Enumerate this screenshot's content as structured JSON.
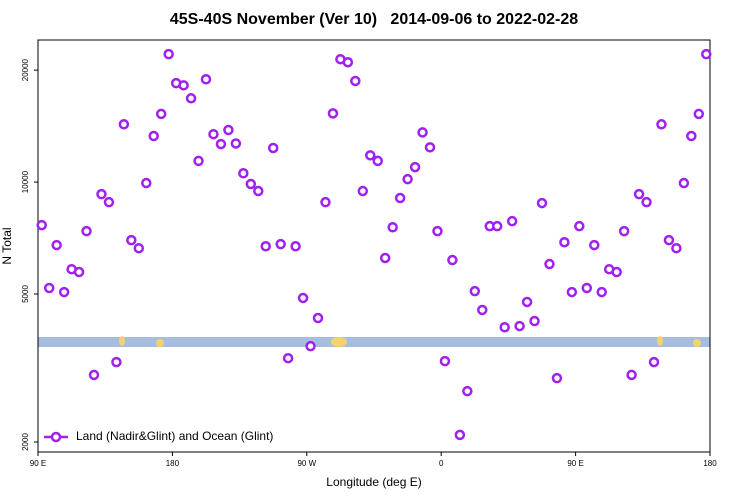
{
  "chart_data": {
    "type": "scatter",
    "title": "45S-40S November (Ver 10)   2014-09-06 to 2022-02-28",
    "x_label": "Longitude (deg E)",
    "y_label": "N Total",
    "log_y": true,
    "legend": "bottom-left",
    "xlim": [
      90,
      540
    ],
    "xticks": [
      {
        "value": 90,
        "label": "90 E"
      },
      180,
      {
        "value": 270,
        "label": "90 W"
      },
      {
        "value": 360,
        "label": "0"
      },
      {
        "value": 450,
        "label": "90 E"
      },
      {
        "value": 540,
        "label": "180"
      }
    ],
    "ylim": [
      1880,
      24100
    ],
    "yticks": [
      2000,
      5000,
      10000,
      20000
    ],
    "x": [
      92.5,
      97.5,
      102.5,
      107.5,
      112.5,
      117.5,
      122.5,
      127.5,
      132.5,
      137.5,
      142.5,
      147.5,
      152.5,
      157.5,
      162.5,
      167.5,
      172.5,
      177.5,
      182.5,
      187.5,
      192.5,
      197.5,
      202.5,
      207.5,
      212.5,
      217.5,
      222.5,
      227.5,
      232.5,
      237.5,
      242.5,
      247.5,
      252.5,
      257.5,
      262.5,
      267.5,
      272.5,
      277.5,
      282.5,
      287.5,
      292.5,
      297.5,
      302.5,
      307.5,
      312.5,
      317.5,
      322.5,
      327.5,
      332.5,
      337.5,
      342.5,
      347.5,
      352.5,
      357.5,
      362.5,
      367.5,
      372.5,
      377.5,
      382.5,
      387.5,
      392.5,
      397.5,
      402.5,
      407.5,
      412.5,
      417.5,
      422.5,
      427.5,
      432.5,
      437.5,
      442.5,
      447.5,
      452.5,
      457.5,
      462.5,
      467.5,
      472.5,
      477.5,
      482.5,
      487.5,
      492.5,
      497.5,
      502.5,
      507.5,
      512.5,
      517.5,
      522.5,
      527.5,
      532.5,
      537.5
    ],
    "series": [
      {
        "name": "Land (Nadir&Glint) and Ocean (Glint)",
        "color": "#a020f0",
        "values": [
          7660,
          5190,
          6770,
          5060,
          5830,
          5730,
          7380,
          3030,
          9280,
          8830,
          3280,
          14300,
          6980,
          6640,
          9940,
          13300,
          15250,
          22080,
          18450,
          18200,
          16800,
          11400,
          18900,
          13450,
          12650,
          13800,
          12700,
          10560,
          9880,
          9460,
          6720,
          12350,
          6810,
          3360,
          6720,
          4880,
          3620,
          4310,
          8830,
          15300,
          21400,
          21000,
          18700,
          9460,
          11800,
          11400,
          6250,
          7560,
          9060,
          10180,
          10970,
          13600,
          12400,
          7380,
          3300,
          6170,
          2090,
          2740,
          5090,
          4530,
          7610,
          7610,
          4070,
          7850,
          4100,
          4760,
          4230,
          8780,
          6020,
          2970,
          6890,
          5060,
          7610,
          5190,
          6770,
          5060,
          5830,
          5730,
          7380,
          3030,
          9280,
          8830,
          3280,
          14300,
          6980,
          6640,
          9940,
          13300,
          15250,
          22080
        ]
      }
    ]
  }
}
